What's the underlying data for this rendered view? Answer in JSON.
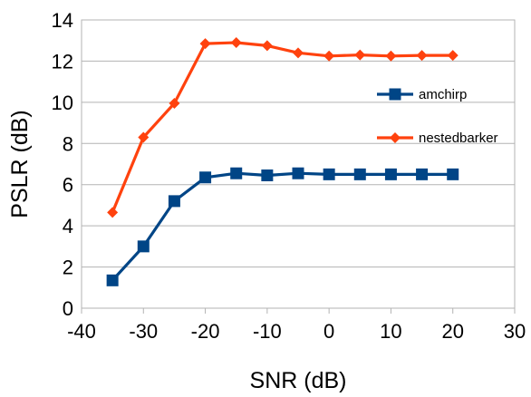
{
  "chart_data": {
    "type": "line",
    "xlabel": "SNR (dB)",
    "ylabel": "PSLR (dB)",
    "xlim": [
      -40,
      30
    ],
    "ylim": [
      0,
      14
    ],
    "x_ticks": [
      -40,
      -30,
      -20,
      -10,
      0,
      10,
      20,
      30
    ],
    "y_ticks": [
      0,
      2,
      4,
      6,
      8,
      10,
      12,
      14
    ],
    "grid": "horizontal",
    "legend_placement": "right",
    "x": [
      -35,
      -30,
      -25,
      -20,
      -15,
      -10,
      -5,
      0,
      5,
      10,
      15,
      20
    ],
    "series": [
      {
        "name": "amchirp",
        "color": "#004586",
        "marker": "square",
        "values": [
          1.35,
          3.0,
          5.2,
          6.35,
          6.55,
          6.45,
          6.55,
          6.5,
          6.5,
          6.5,
          6.5,
          6.5
        ]
      },
      {
        "name": "nestedbarker",
        "color": "#ff420e",
        "marker": "diamond",
        "values": [
          4.65,
          8.3,
          9.95,
          12.85,
          12.9,
          12.75,
          12.4,
          12.25,
          12.3,
          12.25,
          12.28,
          12.28
        ]
      }
    ]
  }
}
